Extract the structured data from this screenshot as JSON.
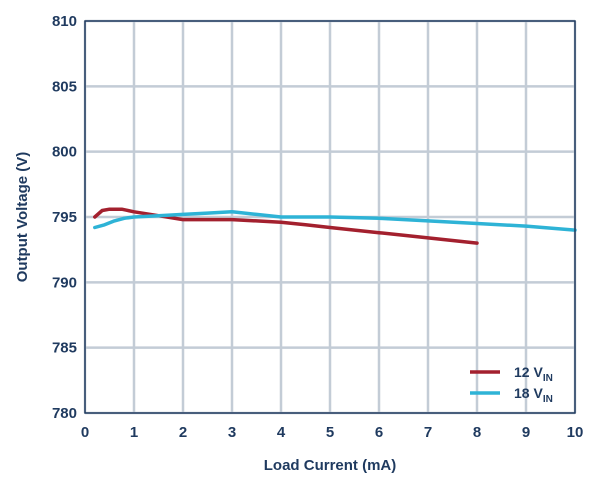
{
  "chart_data": {
    "type": "line",
    "title": "",
    "xlabel": "Load Current (mA)",
    "ylabel": "Output Voltage (V)",
    "xlim": [
      0,
      10
    ],
    "ylim": [
      780,
      810
    ],
    "xticks": [
      0,
      1,
      2,
      3,
      4,
      5,
      6,
      7,
      8,
      9,
      10
    ],
    "yticks": [
      780,
      785,
      790,
      795,
      800,
      805,
      810
    ],
    "grid": true,
    "legend_position": "bottom-right",
    "series": [
      {
        "name": "12 V",
        "name_subscript": "IN",
        "color": "#a3202e",
        "x": [
          0.2,
          0.35,
          0.5,
          0.75,
          1.0,
          1.5,
          2.0,
          2.5,
          3.0,
          3.5,
          4.0,
          4.5,
          5.0,
          5.5,
          6.0,
          6.5,
          7.0,
          7.5,
          8.0
        ],
        "y": [
          795.0,
          795.5,
          795.6,
          795.6,
          795.4,
          795.1,
          794.8,
          794.8,
          794.8,
          794.7,
          794.6,
          794.4,
          794.2,
          794.0,
          793.8,
          793.6,
          793.4,
          793.2,
          793.0
        ]
      },
      {
        "name": "18 V",
        "name_subscript": "IN",
        "color": "#2eb3d6",
        "x": [
          0.2,
          0.4,
          0.6,
          0.8,
          1.0,
          1.5,
          2.0,
          2.5,
          3.0,
          3.5,
          4.0,
          5.0,
          6.0,
          7.0,
          8.0,
          9.0,
          10.0
        ],
        "y": [
          794.2,
          794.4,
          794.7,
          794.9,
          795.0,
          795.1,
          795.2,
          795.3,
          795.4,
          795.2,
          795.0,
          795.0,
          794.9,
          794.7,
          794.5,
          794.3,
          794.0
        ]
      }
    ]
  }
}
